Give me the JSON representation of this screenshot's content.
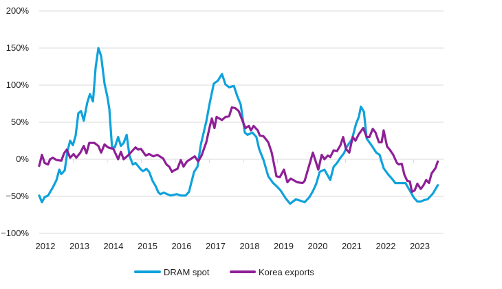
{
  "chart_data": {
    "type": "line",
    "title": "",
    "xlabel": "",
    "ylabel": "",
    "ylim": [
      -100,
      200
    ],
    "yticks": [
      -100,
      -50,
      0,
      50,
      100,
      150,
      200
    ],
    "ytick_labels": [
      "−100%",
      "−50%",
      "0%",
      "50%",
      "100%",
      "150%",
      "200%"
    ],
    "xticks": [
      2012,
      2013,
      2014,
      2015,
      2016,
      2017,
      2018,
      2019,
      2020,
      2021,
      2022,
      2023
    ],
    "xtick_labels": [
      "2012",
      "2013",
      "2014",
      "2015",
      "2016",
      "2017",
      "2018",
      "2019",
      "2020",
      "2021",
      "2022",
      "2023"
    ],
    "xlim": [
      2012,
      2023.9
    ],
    "grid": "horizontal",
    "legend_position": "bottom",
    "series": [
      {
        "name": "DRAM spot",
        "color": "#0ea2dc",
        "x": [
          2012.0,
          2012.08,
          2012.16,
          2012.26,
          2012.4,
          2012.51,
          2012.59,
          2012.65,
          2012.75,
          2012.83,
          2012.91,
          2012.99,
          2013.07,
          2013.15,
          2013.23,
          2013.31,
          2013.41,
          2013.49,
          2013.58,
          2013.66,
          2013.74,
          2013.82,
          2013.92,
          2014.0,
          2014.06,
          2014.14,
          2014.22,
          2014.32,
          2014.4,
          2014.48,
          2014.57,
          2014.65,
          2014.75,
          2014.83,
          2014.99,
          2015.05,
          2015.15,
          2015.23,
          2015.33,
          2015.43,
          2015.49,
          2015.56,
          2015.66,
          2015.76,
          2015.86,
          2016.04,
          2016.16,
          2016.3,
          2016.4,
          2016.55,
          2016.65,
          2016.75,
          2016.91,
          2017.01,
          2017.13,
          2017.25,
          2017.37,
          2017.47,
          2017.58,
          2017.72,
          2017.82,
          2017.92,
          2018.04,
          2018.12,
          2018.26,
          2018.38,
          2018.46,
          2018.59,
          2018.73,
          2018.87,
          2018.99,
          2019.09,
          2019.23,
          2019.37,
          2019.54,
          2019.68,
          2019.8,
          2019.94,
          2020.04,
          2020.14,
          2020.24,
          2020.38,
          2020.55,
          2020.65,
          2020.75,
          2020.85,
          2020.95,
          2021.05,
          2021.19,
          2021.31,
          2021.39,
          2021.45,
          2021.54,
          2021.62,
          2021.76,
          2021.9,
          2022.0,
          2022.12,
          2022.26,
          2022.36,
          2022.46,
          2022.62,
          2022.76,
          2022.91,
          2023.01,
          2023.11,
          2023.21,
          2023.31,
          2023.41,
          2023.57,
          2023.71
        ],
        "y": [
          -49,
          -58,
          -51,
          -49,
          -38,
          -28,
          -14,
          -20,
          -15,
          11,
          25,
          19,
          32,
          62,
          65,
          52,
          76,
          88,
          78,
          125,
          150,
          139,
          102,
          85,
          68,
          16,
          16,
          30,
          18,
          22,
          33,
          5,
          -7,
          -5,
          -14,
          -16,
          -13,
          -17,
          -29,
          -37,
          -44,
          -47,
          -45,
          -47,
          -49,
          -47,
          -49,
          -49,
          -44,
          -17,
          -10,
          20,
          51,
          76,
          102,
          106,
          115,
          101,
          97,
          99,
          85,
          74,
          36,
          33,
          36,
          30,
          14,
          -1,
          -23,
          -32,
          -37,
          -42,
          -52,
          -60,
          -54,
          -56,
          -58,
          -51,
          -43,
          -33,
          -17,
          -14,
          -28,
          -10,
          -5,
          2,
          8,
          18,
          27,
          48,
          57,
          71,
          64,
          28,
          19,
          9,
          6,
          -12,
          -21,
          -26,
          -32,
          -32,
          -32,
          -44,
          -52,
          -57,
          -57,
          -55,
          -54,
          -46,
          -35
        ]
      },
      {
        "name": "Korea exports",
        "color": "#8e1f96",
        "x": [
          2012.0,
          2012.08,
          2012.16,
          2012.26,
          2012.32,
          2012.4,
          2012.51,
          2012.65,
          2012.73,
          2012.81,
          2012.91,
          2013.01,
          2013.09,
          2013.21,
          2013.31,
          2013.39,
          2013.47,
          2013.62,
          2013.74,
          2013.82,
          2013.92,
          2014.02,
          2014.18,
          2014.32,
          2014.4,
          2014.48,
          2014.63,
          2014.73,
          2014.83,
          2014.91,
          2014.99,
          2015.13,
          2015.23,
          2015.35,
          2015.47,
          2015.64,
          2015.74,
          2015.82,
          2015.9,
          2015.96,
          2016.06,
          2016.16,
          2016.24,
          2016.34,
          2016.44,
          2016.57,
          2016.67,
          2016.77,
          2016.91,
          2017.01,
          2017.07,
          2017.15,
          2017.21,
          2017.37,
          2017.47,
          2017.58,
          2017.66,
          2017.76,
          2017.86,
          2017.98,
          2018.06,
          2018.16,
          2018.22,
          2018.3,
          2018.42,
          2018.48,
          2018.59,
          2018.73,
          2018.83,
          2018.97,
          2019.07,
          2019.19,
          2019.29,
          2019.39,
          2019.58,
          2019.74,
          2019.8,
          2020.04,
          2020.2,
          2020.3,
          2020.38,
          2020.48,
          2020.55,
          2020.65,
          2020.75,
          2020.85,
          2020.93,
          2021.01,
          2021.11,
          2021.21,
          2021.29,
          2021.39,
          2021.52,
          2021.62,
          2021.7,
          2021.8,
          2021.88,
          2021.98,
          2022.06,
          2022.12,
          2022.22,
          2022.3,
          2022.4,
          2022.51,
          2022.57,
          2022.65,
          2022.73,
          2022.81,
          2022.89,
          2022.95,
          2023.03,
          2023.11,
          2023.21,
          2023.29,
          2023.37,
          2023.45,
          2023.53,
          2023.64,
          2023.71
        ],
        "y": [
          -9,
          6,
          -5,
          -7,
          0,
          2,
          -1,
          -2,
          8,
          13,
          2,
          7,
          2,
          9,
          18,
          8,
          22,
          22,
          18,
          9,
          20,
          16,
          14,
          0,
          10,
          0,
          6,
          11,
          16,
          13,
          14,
          5,
          7,
          4,
          6,
          1,
          -7,
          -10,
          -17,
          -15,
          -13,
          -1,
          -10,
          -3,
          0,
          4,
          -3,
          5,
          23,
          44,
          55,
          42,
          57,
          53,
          57,
          58,
          70,
          69,
          65,
          51,
          42,
          45,
          39,
          45,
          39,
          32,
          31,
          23,
          9,
          -23,
          -24,
          -14,
          -31,
          -26,
          -31,
          -32,
          -29,
          9,
          -14,
          6,
          0,
          5,
          3,
          12,
          11,
          19,
          30,
          14,
          9,
          30,
          25,
          34,
          42,
          30,
          30,
          41,
          36,
          23,
          23,
          39,
          17,
          13,
          6,
          -5,
          -7,
          -6,
          -21,
          -29,
          -30,
          -44,
          -42,
          -33,
          -40,
          -35,
          -28,
          -32,
          -19,
          -12,
          -3
        ]
      }
    ]
  }
}
